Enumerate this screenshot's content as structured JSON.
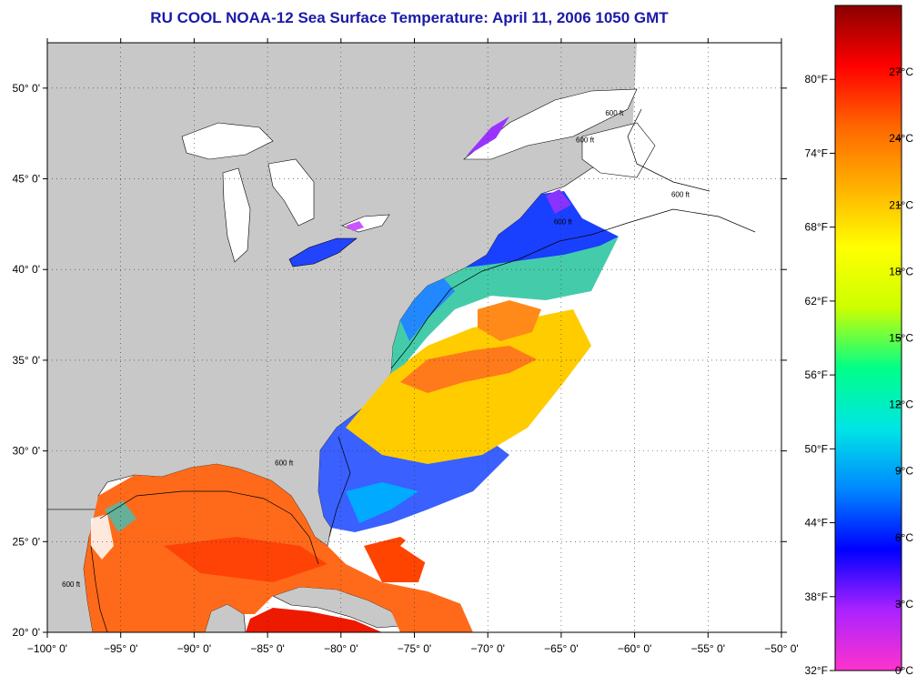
{
  "title": "RU COOL  NOAA-12  Sea Surface Temperature:  April 11, 2006 1050 GMT",
  "map": {
    "lon_range": [
      -100,
      -50
    ],
    "lat_range": [
      20,
      52.5
    ],
    "lon_ticks": [
      {
        "value": -100,
        "label": "−100° 0'"
      },
      {
        "value": -95,
        "label": "−95° 0'"
      },
      {
        "value": -90,
        "label": "−90° 0'"
      },
      {
        "value": -85,
        "label": "−85° 0'"
      },
      {
        "value": -80,
        "label": "−80° 0'"
      },
      {
        "value": -75,
        "label": "−75° 0'"
      },
      {
        "value": -70,
        "label": "−70° 0'"
      },
      {
        "value": -65,
        "label": "−65° 0'"
      },
      {
        "value": -60,
        "label": "−60° 0'"
      },
      {
        "value": -55,
        "label": "−55° 0'"
      },
      {
        "value": -50,
        "label": "−50° 0'"
      }
    ],
    "lat_ticks": [
      {
        "value": 20,
        "label": "20° 0'"
      },
      {
        "value": 25,
        "label": "25° 0'"
      },
      {
        "value": 30,
        "label": "30° 0'"
      },
      {
        "value": 35,
        "label": "35° 0'"
      },
      {
        "value": 40,
        "label": "40° 0'"
      },
      {
        "value": 45,
        "label": "45° 0'"
      },
      {
        "value": 50,
        "label": "50° 0'"
      }
    ],
    "grid": "dotted",
    "colors": {
      "land": "#c8c8c8",
      "no_data": "#ffffff",
      "coast": "#000000"
    },
    "contour_labels": [
      {
        "label": "600 ft",
        "lon": -57.5,
        "lat": 44.0
      },
      {
        "label": "600 ft",
        "lon": -62.0,
        "lat": 48.5
      },
      {
        "label": "600 ft",
        "lon": -64.0,
        "lat": 47.0
      },
      {
        "label": "600 ft",
        "lon": -84.5,
        "lat": 29.2
      },
      {
        "label": "600 ft",
        "lon": -99.0,
        "lat": 22.5
      },
      {
        "label": "600 ft",
        "lon": -65.5,
        "lat": 42.5
      }
    ]
  },
  "colorbar": {
    "f_labels": [
      {
        "value": 80,
        "label": "80°F"
      },
      {
        "value": 74,
        "label": "74°F"
      },
      {
        "value": 68,
        "label": "68°F"
      },
      {
        "value": 62,
        "label": "62°F"
      },
      {
        "value": 56,
        "label": "56°F"
      },
      {
        "value": 50,
        "label": "50°F"
      },
      {
        "value": 44,
        "label": "44°F"
      },
      {
        "value": 38,
        "label": "38°F"
      },
      {
        "value": 32,
        "label": "32°F"
      }
    ],
    "c_labels": [
      {
        "value": 27,
        "label": "27°C"
      },
      {
        "value": 24,
        "label": "24°C"
      },
      {
        "value": 21,
        "label": "21°C"
      },
      {
        "value": 18,
        "label": "18°C"
      },
      {
        "value": 15,
        "label": "15°C"
      },
      {
        "value": 12,
        "label": "12°C"
      },
      {
        "value": 9,
        "label": "9°C"
      },
      {
        "value": 6,
        "label": "6°C"
      },
      {
        "value": 3,
        "label": "3°C"
      },
      {
        "value": 0,
        "label": "0°C"
      }
    ],
    "c_range": [
      0,
      30
    ],
    "colors": [
      "#ff33cc",
      "#aa22ff",
      "#0000ff",
      "#0088ff",
      "#00e5e5",
      "#00ff88",
      "#ccff00",
      "#ffff00",
      "#ffb000",
      "#ff6600",
      "#ff0000",
      "#8b0000"
    ]
  }
}
